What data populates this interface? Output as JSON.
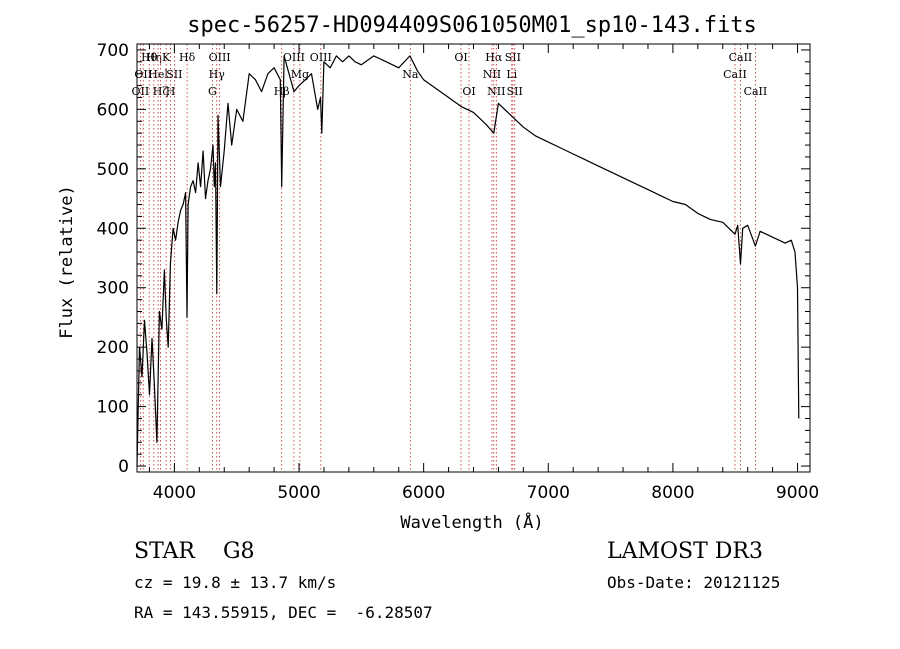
{
  "chart_data": {
    "type": "line",
    "title": "spec-56257-HD094409S061050M01_sp10-143.fits",
    "xlabel": "Wavelength (Å)",
    "ylabel": "Flux (relative)",
    "xlim": [
      3700,
      9100
    ],
    "ylim": [
      -10,
      710
    ],
    "x_ticks": [
      4000,
      5000,
      6000,
      7000,
      8000,
      9000
    ],
    "y_ticks": [
      0,
      100,
      200,
      300,
      400,
      500,
      600,
      700
    ],
    "series": [
      {
        "name": "spectrum",
        "x": [
          3700,
          3720,
          3740,
          3760,
          3780,
          3800,
          3820,
          3840,
          3860,
          3880,
          3900,
          3920,
          3934,
          3950,
          3968,
          3990,
          4010,
          4030,
          4050,
          4070,
          4090,
          4101,
          4110,
          4130,
          4150,
          4170,
          4190,
          4210,
          4230,
          4250,
          4270,
          4290,
          4310,
          4320,
          4330,
          4340,
          4350,
          4370,
          4400,
          4430,
          4460,
          4500,
          4550,
          4600,
          4650,
          4700,
          4750,
          4800,
          4850,
          4861,
          4880,
          4920,
          4960,
          5000,
          5050,
          5100,
          5150,
          5172,
          5183,
          5200,
          5250,
          5300,
          5350,
          5400,
          5450,
          5500,
          5600,
          5700,
          5800,
          5890,
          5950,
          6000,
          6100,
          6200,
          6300,
          6400,
          6500,
          6563,
          6600,
          6700,
          6800,
          6900,
          7000,
          7100,
          7200,
          7300,
          7400,
          7500,
          7600,
          7700,
          7800,
          7900,
          8000,
          8100,
          8200,
          8300,
          8400,
          8498,
          8520,
          8542,
          8560,
          8600,
          8662,
          8700,
          8800,
          8900,
          8950,
          8980,
          9000,
          9010
        ],
        "y": [
          0,
          200,
          150,
          245,
          190,
          120,
          215,
          135,
          40,
          260,
          230,
          330,
          250,
          200,
          340,
          400,
          380,
          410,
          430,
          440,
          460,
          250,
          440,
          470,
          480,
          460,
          510,
          470,
          530,
          450,
          480,
          500,
          540,
          470,
          510,
          290,
          590,
          470,
          530,
          610,
          540,
          600,
          580,
          660,
          650,
          630,
          660,
          670,
          650,
          470,
          690,
          660,
          630,
          640,
          650,
          660,
          600,
          620,
          560,
          680,
          670,
          690,
          680,
          690,
          680,
          675,
          690,
          680,
          670,
          690,
          665,
          650,
          635,
          620,
          605,
          595,
          575,
          560,
          610,
          590,
          570,
          555,
          545,
          535,
          525,
          515,
          505,
          495,
          485,
          475,
          465,
          455,
          445,
          440,
          425,
          415,
          410,
          390,
          405,
          340,
          400,
          405,
          370,
          395,
          385,
          375,
          380,
          360,
          300,
          80
        ]
      }
    ],
    "lines": [
      {
        "x": 3727,
        "row": 3,
        "label": "OII"
      },
      {
        "x": 3750,
        "row": 2,
        "label": "OII"
      },
      {
        "x": 3798,
        "row": 1,
        "label": "Hθ"
      },
      {
        "x": 3835,
        "row": 1,
        "label": "Hη"
      },
      {
        "x": 3869,
        "row": 2,
        "label": "Hel"
      },
      {
        "x": 3889,
        "row": 3,
        "label": "Hζ"
      },
      {
        "x": 3934,
        "row": 1,
        "label": "K"
      },
      {
        "x": 3969,
        "row": 3,
        "label": "H"
      },
      {
        "x": 4000,
        "row": 2,
        "label": "SII"
      },
      {
        "x": 4102,
        "row": 1,
        "label": "Hδ"
      },
      {
        "x": 4305,
        "row": 3,
        "label": "G"
      },
      {
        "x": 4340,
        "row": 2,
        "label": "Hγ"
      },
      {
        "x": 4363,
        "row": 1,
        "label": "OIII"
      },
      {
        "x": 4861,
        "row": 3,
        "label": "Hβ"
      },
      {
        "x": 4959,
        "row": 1,
        "label": "OIII"
      },
      {
        "x": 5007,
        "row": 2,
        "label": "Mg"
      },
      {
        "x": 5175,
        "row": 1,
        "label": "OIII"
      },
      {
        "x": 5893,
        "row": 2,
        "label": "Na"
      },
      {
        "x": 6300,
        "row": 1,
        "label": "OI"
      },
      {
        "x": 6364,
        "row": 3,
        "label": "OI"
      },
      {
        "x": 6548,
        "row": 2,
        "label": "NII"
      },
      {
        "x": 6563,
        "row": 1,
        "label": "Hα"
      },
      {
        "x": 6583,
        "row": 3,
        "label": "NII"
      },
      {
        "x": 6707,
        "row": 2,
        "label": "Li"
      },
      {
        "x": 6716,
        "row": 1,
        "label": "SII"
      },
      {
        "x": 6731,
        "row": 3,
        "label": "SII"
      },
      {
        "x": 8498,
        "row": 2,
        "label": "CaII"
      },
      {
        "x": 8542,
        "row": 1,
        "label": "CaII"
      },
      {
        "x": 8662,
        "row": 3,
        "label": "CaII"
      }
    ]
  },
  "info": {
    "object": "STAR    G8",
    "survey": "LAMOST DR3",
    "cz": "cz = 19.8 ± 13.7 km/s",
    "obs_date": "Obs-Date: 20121125",
    "coords": "RA = 143.55915, DEC =  -6.28507"
  }
}
